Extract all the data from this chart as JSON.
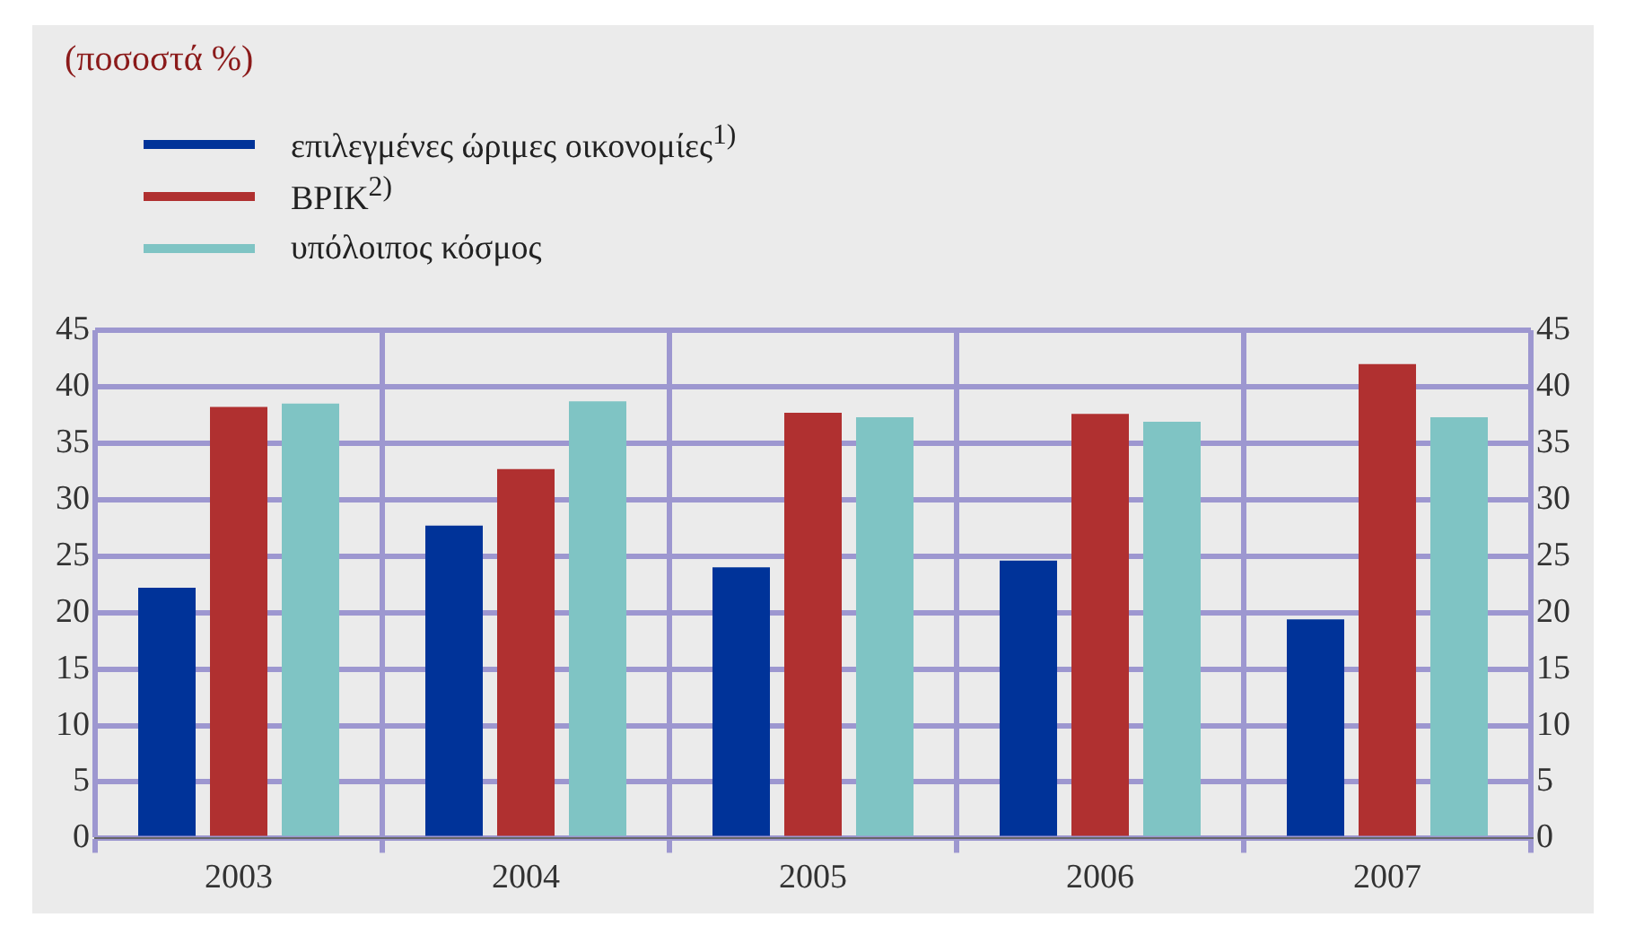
{
  "chart_data": {
    "type": "bar",
    "title": "(ποσοστά %)",
    "categories": [
      "2003",
      "2004",
      "2005",
      "2006",
      "2007"
    ],
    "series": [
      {
        "name": "επιλεγμένες ώριμες οικονομίες$^{1)}$",
        "color": "#003399",
        "values": [
          22.2,
          27.7,
          24.0,
          24.6,
          19.4
        ]
      },
      {
        "name": "ΒΡΙΚ$^{2)}$",
        "color": "#b03030",
        "values": [
          38.2,
          32.7,
          37.7,
          37.6,
          42.0
        ]
      },
      {
        "name": "υπόλοιπος κόσμος",
        "color": "#7fc4c4",
        "values": [
          38.5,
          38.7,
          37.3,
          36.9,
          37.3
        ]
      }
    ],
    "ylim": [
      0,
      45
    ],
    "yticks": [
      0,
      5,
      10,
      15,
      20,
      25,
      30,
      35,
      40,
      45
    ],
    "y2lim": [
      0,
      45
    ],
    "y2ticks": [
      0,
      5,
      10,
      15,
      20,
      25,
      30,
      35,
      40,
      45
    ],
    "grid": true,
    "legend": "top left"
  }
}
